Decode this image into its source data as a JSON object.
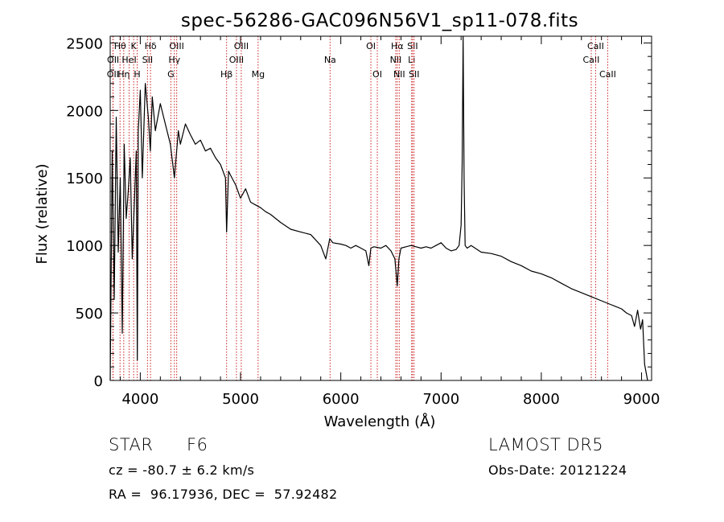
{
  "chart_data": {
    "type": "line",
    "title": "spec-56286-GAC096N56V1_sp11-078.fits",
    "xlabel": "Wavelength (Å)",
    "ylabel": "Flux (relative)",
    "xlim": [
      3700,
      9100
    ],
    "ylim": [
      0,
      2550
    ],
    "xticks": [
      4000,
      5000,
      6000,
      7000,
      8000,
      9000
    ],
    "yticks": [
      0,
      500,
      1000,
      1500,
      2000,
      2500
    ],
    "grid": false,
    "line_color": "#000000",
    "marker_color": "#cc2222",
    "series": [
      {
        "x": [
          3700,
          3720,
          3740,
          3760,
          3780,
          3800,
          3820,
          3840,
          3860,
          3880,
          3900,
          3920,
          3940,
          3960,
          3970,
          3980,
          4000,
          4020,
          4050,
          4080,
          4100,
          4120,
          4150,
          4200,
          4250,
          4300,
          4340,
          4380,
          4400,
          4450,
          4500,
          4550,
          4600,
          4650,
          4700,
          4750,
          4800,
          4850,
          4861,
          4880,
          4900,
          4950,
          5000,
          5050,
          5100,
          5150,
          5200,
          5250,
          5300,
          5400,
          5500,
          5600,
          5700,
          5800,
          5850,
          5890,
          5920,
          6000,
          6050,
          6100,
          6150,
          6200,
          6250,
          6280,
          6300,
          6330,
          6400,
          6450,
          6500,
          6540,
          6563,
          6580,
          6600,
          6650,
          6700,
          6750,
          6800,
          6850,
          6900,
          6950,
          7000,
          7050,
          7100,
          7150,
          7180,
          7200,
          7210,
          7220,
          7230,
          7240,
          7260,
          7300,
          7400,
          7500,
          7600,
          7700,
          7800,
          7900,
          8000,
          8100,
          8200,
          8300,
          8400,
          8500,
          8600,
          8700,
          8800,
          8850,
          8900,
          8930,
          8960,
          8990,
          9010,
          9030,
          9060
        ],
        "y": [
          0,
          1700,
          600,
          1950,
          950,
          1500,
          350,
          1750,
          1200,
          1400,
          1650,
          900,
          1300,
          1700,
          150,
          1850,
          2150,
          1500,
          2200,
          1950,
          1700,
          2100,
          1850,
          2050,
          1900,
          1750,
          1500,
          1850,
          1750,
          1900,
          1820,
          1750,
          1780,
          1700,
          1720,
          1650,
          1600,
          1500,
          1100,
          1550,
          1520,
          1450,
          1350,
          1420,
          1320,
          1300,
          1280,
          1250,
          1230,
          1170,
          1120,
          1100,
          1080,
          1000,
          900,
          1050,
          1020,
          1010,
          1000,
          980,
          1000,
          980,
          960,
          850,
          980,
          990,
          980,
          1000,
          960,
          900,
          700,
          900,
          980,
          990,
          1000,
          990,
          980,
          990,
          980,
          1000,
          1020,
          980,
          960,
          970,
          1000,
          1150,
          1600,
          2550,
          1500,
          1000,
          980,
          1000,
          950,
          940,
          920,
          880,
          850,
          810,
          790,
          760,
          720,
          680,
          650,
          620,
          590,
          560,
          530,
          500,
          480,
          400,
          520,
          380,
          450,
          120,
          0
        ]
      }
    ],
    "line_markers": [
      {
        "label": "OII",
        "x": 3727,
        "row": 2
      },
      {
        "label": "OII",
        "x": 3729,
        "row": 1
      },
      {
        "label": "Hθ",
        "x": 3798,
        "row": 0
      },
      {
        "label": "Hη",
        "x": 3835,
        "row": 2
      },
      {
        "label": "HeI",
        "x": 3889,
        "row": 1
      },
      {
        "label": "K",
        "x": 3934,
        "row": 0
      },
      {
        "label": "H",
        "x": 3969,
        "row": 2
      },
      {
        "label": "SII",
        "x": 4072,
        "row": 1
      },
      {
        "label": "Hδ",
        "x": 4102,
        "row": 0
      },
      {
        "label": "G",
        "x": 4305,
        "row": 2
      },
      {
        "label": "Hγ",
        "x": 4340,
        "row": 1
      },
      {
        "label": "OIII",
        "x": 4363,
        "row": 0
      },
      {
        "label": "Hβ",
        "x": 4861,
        "row": 2
      },
      {
        "label": "OIII",
        "x": 4959,
        "row": 1
      },
      {
        "label": "OIII",
        "x": 5007,
        "row": 0
      },
      {
        "label": "Mg",
        "x": 5175,
        "row": 2
      },
      {
        "label": "Na",
        "x": 5893,
        "row": 1
      },
      {
        "label": "OI",
        "x": 6300,
        "row": 0
      },
      {
        "label": "OI",
        "x": 6364,
        "row": 2
      },
      {
        "label": "NII",
        "x": 6548,
        "row": 1
      },
      {
        "label": "Hα",
        "x": 6563,
        "row": 0
      },
      {
        "label": "NII",
        "x": 6583,
        "row": 2
      },
      {
        "label": "Li",
        "x": 6707,
        "row": 1
      },
      {
        "label": "SII",
        "x": 6716,
        "row": 0
      },
      {
        "label": "SII",
        "x": 6731,
        "row": 2
      },
      {
        "label": "CaII",
        "x": 8498,
        "row": 1
      },
      {
        "label": "CaII",
        "x": 8542,
        "row": 0
      },
      {
        "label": "CaII",
        "x": 8662,
        "row": 2
      }
    ]
  },
  "info": {
    "class_label": "STAR",
    "subclass": "F6",
    "survey": "LAMOST DR5",
    "redshift": "cz = -80.7 ± 6.2 km/s",
    "obs_date": "Obs-Date: 20121224",
    "coords": "RA =  96.17936, DEC =  57.92482"
  }
}
